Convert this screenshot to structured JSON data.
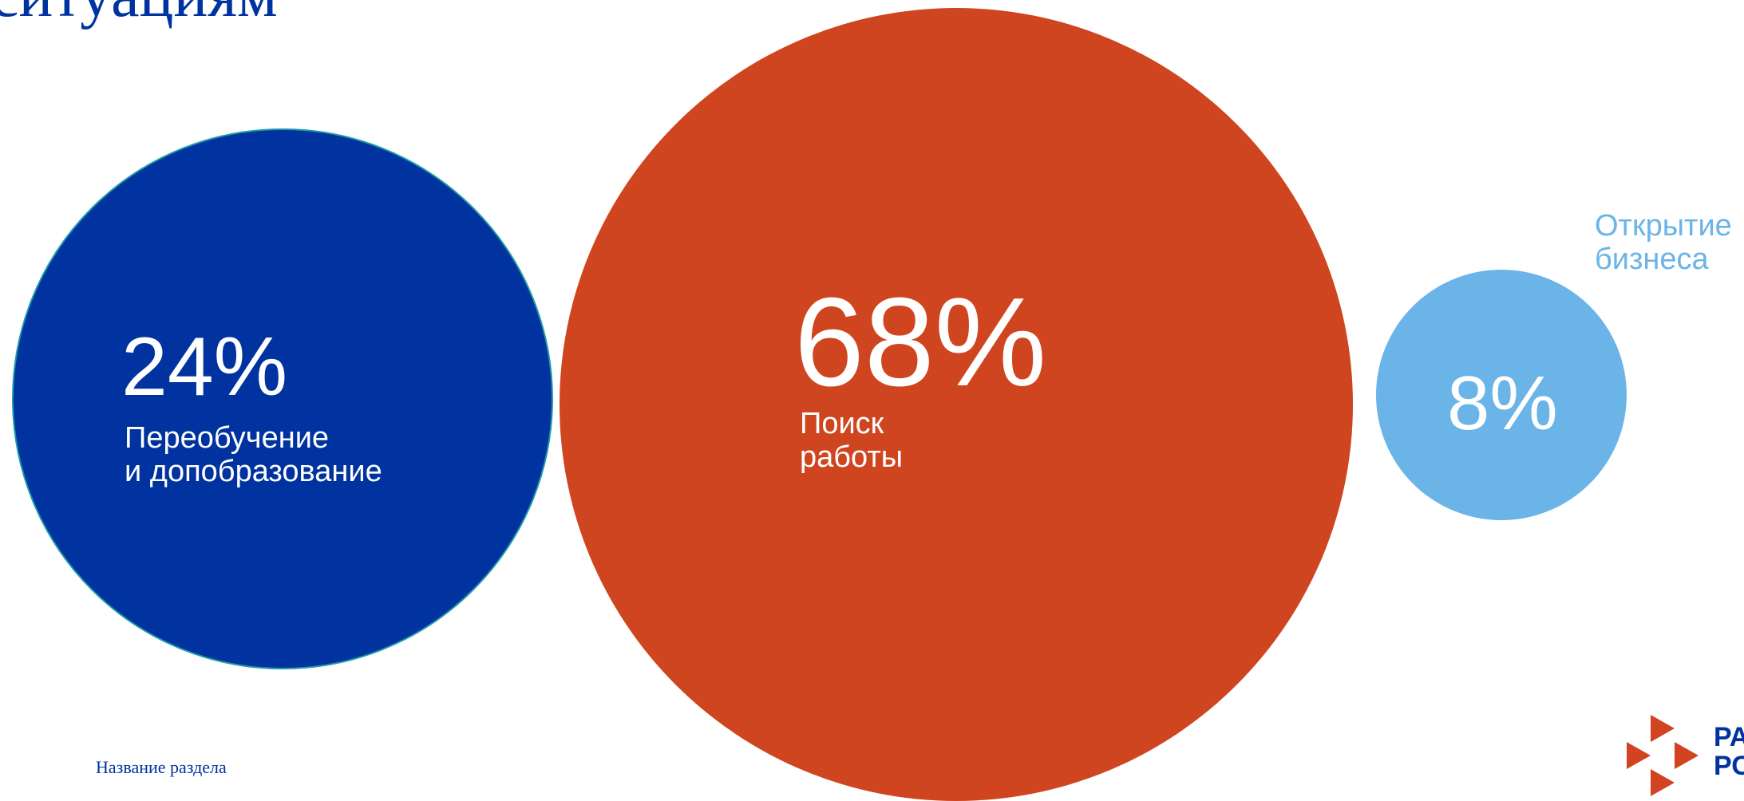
{
  "slide": {
    "title": "ситуациям",
    "section_name": "Название раздела"
  },
  "logo": {
    "text": "РА\nРО",
    "colors": {
      "arrows": "#d24421",
      "text": "#0033a0"
    }
  },
  "chart_data": {
    "type": "bubble",
    "title": "",
    "series": [
      {
        "name": "Переобучение\nи допобразование",
        "value": 24,
        "label": "24%",
        "color": "#0033a0"
      },
      {
        "name": "Поиск\nработы",
        "value": 68,
        "label": "68%",
        "color": "#cf4520"
      },
      {
        "name": "Открытие\nбизнеса",
        "value": 8,
        "label": "8%",
        "color": "#6ab4e8"
      }
    ]
  }
}
